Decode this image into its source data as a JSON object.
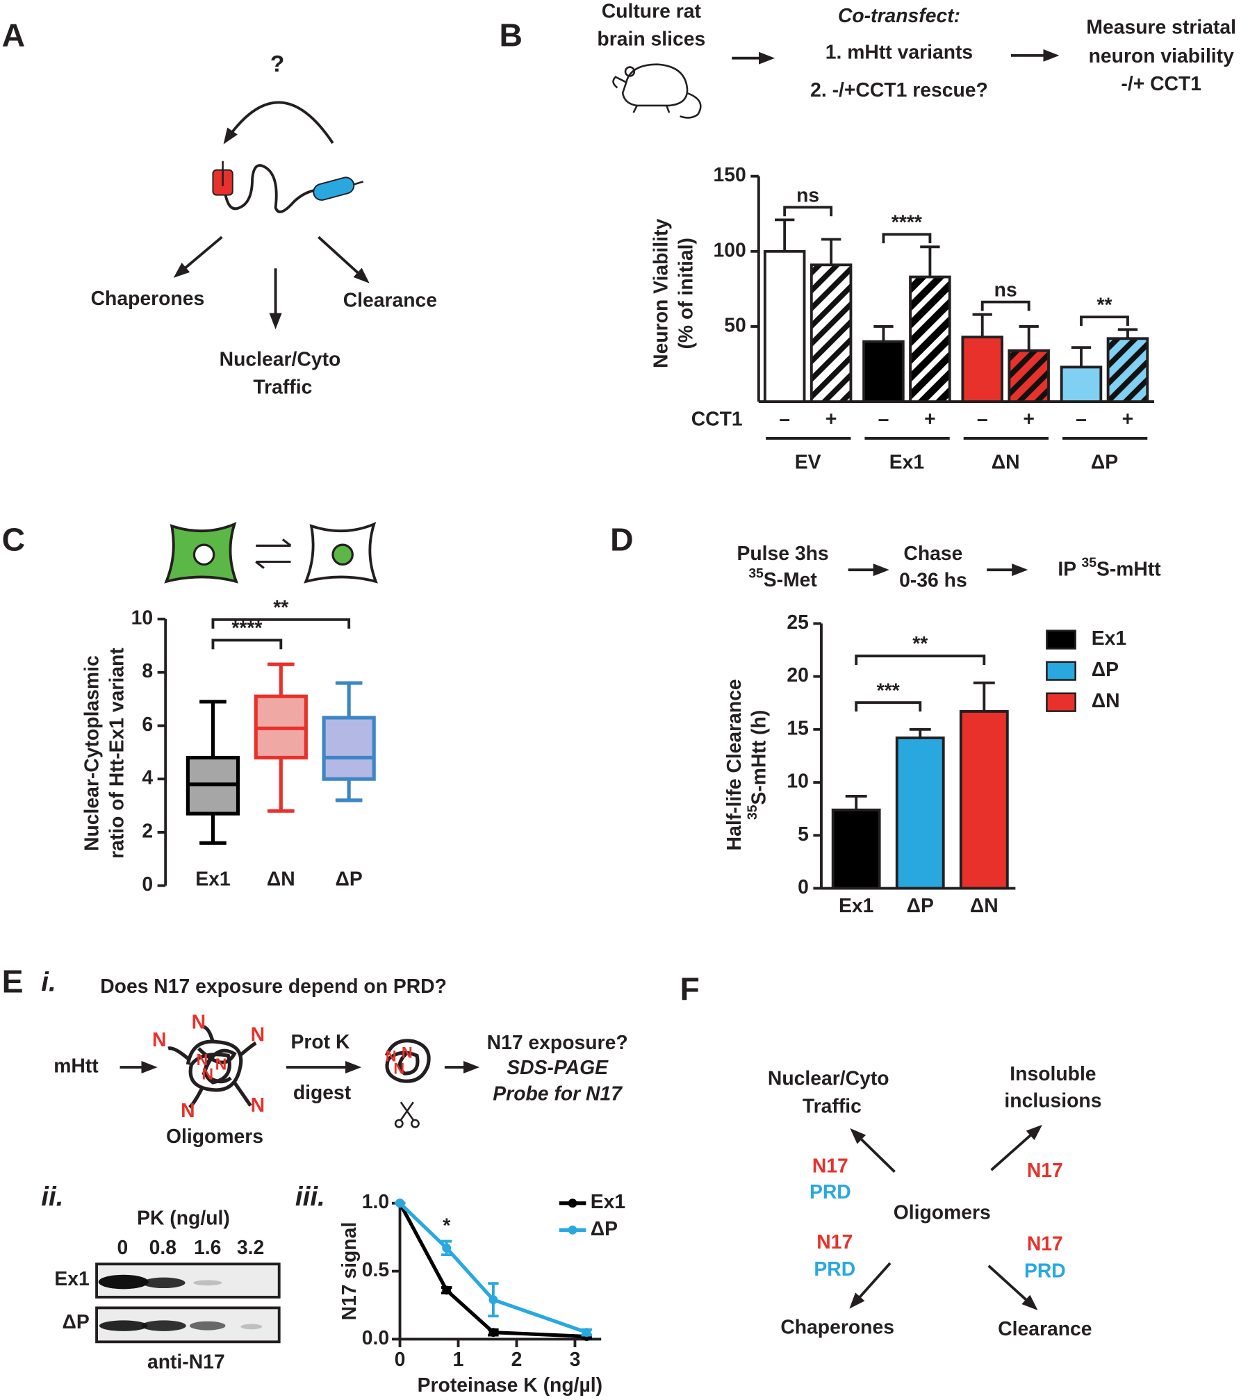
{
  "panels": {
    "a": "A",
    "b": "B",
    "c": "C",
    "d": "D",
    "e": "E",
    "f": "F",
    "e_i": "i.",
    "e_ii": "ii.",
    "e_iii": "iii."
  },
  "diagram_a": {
    "question": "?",
    "chaperones": "Chaperones",
    "clearance": "Clearance",
    "traffic": [
      "Nuclear/Cyto",
      "Traffic"
    ]
  },
  "diagram_b": {
    "step1": [
      "Culture rat",
      "brain slices"
    ],
    "step2_title": "Co-transfect:",
    "step2": [
      "1. mHtt variants",
      "2. -/+CCT1 rescue?"
    ],
    "step3": [
      "Measure striatal",
      "neuron viability",
      "-/+ CCT1"
    ]
  },
  "diagram_d": {
    "step1": [
      "Pulse 3hs",
      {
        "sup": "35",
        "text": "S-Met"
      }
    ],
    "step2": [
      "Chase",
      "0-36 hs"
    ],
    "step3": {
      "prefix": "IP ",
      "sup": "35",
      "text": "S-mHtt"
    }
  },
  "diagram_e": {
    "question": "Does N17 exposure depend on PRD?",
    "input": "mHtt",
    "n_label": "N",
    "oligomers": "Oligomers",
    "enzyme": [
      "Prot K",
      "digest"
    ],
    "readout": [
      "N17 exposure?",
      "SDS-PAGE",
      "Probe for N17"
    ],
    "blot": {
      "title": "PK (ng/ul)",
      "lanes": [
        "0",
        "0.8",
        "1.6",
        "3.2"
      ],
      "rows": [
        "Ex1",
        "ΔP"
      ],
      "antibody": "anti-N17"
    }
  },
  "diagram_f": {
    "traffic": [
      "Nuclear/Cyto",
      "Traffic"
    ],
    "inclusions": [
      "Insoluble",
      "inclusions"
    ],
    "center": "Oligomers",
    "chaperones": "Chaperones",
    "clearance": "Clearance",
    "n17": "N17",
    "prd": "PRD"
  },
  "chart_data": [
    {
      "type": "bar",
      "y_label": [
        "Neuron Viability",
        "(% of initial)"
      ],
      "row_label": "CCT1",
      "categories": [
        "–",
        "+",
        "–",
        "+",
        "–",
        "+",
        "–",
        "+"
      ],
      "groups": [
        "EV",
        "Ex1",
        "ΔN",
        "ΔP"
      ],
      "values": [
        100,
        91,
        40,
        83,
        43,
        34,
        23,
        42
      ],
      "errors": [
        21,
        17,
        10,
        20,
        15,
        16,
        13,
        6
      ],
      "colors": [
        "#ffffff",
        "#ffffff",
        "#000000",
        "#000000",
        "#e8312a",
        "#e8312a",
        "#7fd0f2",
        "#7fd0f2"
      ],
      "hatched": [
        false,
        true,
        false,
        true,
        false,
        true,
        false,
        true
      ],
      "annotations": [
        "ns",
        "****",
        "ns",
        "**"
      ],
      "ylim": [
        0,
        150
      ],
      "yticks": [
        50,
        100,
        150
      ]
    },
    {
      "type": "box",
      "y_label": [
        "Nuclear-Cytoplasmic",
        "ratio of Htt-Ex1 variant"
      ],
      "categories": [
        "Ex1",
        "ΔN",
        "ΔP"
      ],
      "min": [
        1.6,
        2.8,
        3.2
      ],
      "q1": [
        2.7,
        4.8,
        4.0
      ],
      "median": [
        3.8,
        5.9,
        4.8
      ],
      "q3": [
        4.8,
        7.1,
        6.3
      ],
      "max": [
        6.9,
        8.3,
        7.6
      ],
      "colors": [
        "#000000",
        "#e8312a",
        "#3d86c6"
      ],
      "fills": [
        "#a6a6a6",
        "#f0a8a4",
        "#b3b8e4"
      ],
      "annotations": [
        "****",
        "**"
      ],
      "ylim": [
        0,
        10
      ],
      "yticks": [
        0,
        2,
        4,
        6,
        8,
        10
      ]
    },
    {
      "type": "bar",
      "y_label": {
        "line1": "Half-life Clearance",
        "sup": "35",
        "rest": "S-mHtt (h)"
      },
      "categories": [
        "Ex1",
        "ΔP",
        "ΔN"
      ],
      "values": [
        7.4,
        14.2,
        16.7
      ],
      "errors": [
        1.3,
        0.8,
        2.7
      ],
      "colors": [
        "#000000",
        "#29a8e0",
        "#e8312a"
      ],
      "legend": "right",
      "annotations": [
        "***",
        "**"
      ],
      "ylim": [
        0,
        25
      ],
      "yticks": [
        0,
        5,
        10,
        15,
        20,
        25
      ]
    },
    {
      "type": "line",
      "x": [
        0,
        0.8,
        1.6,
        3.2
      ],
      "x_label": "Proteinase K (ng/µl)",
      "y_label": "N17 signal",
      "series": [
        {
          "name": "Ex1",
          "color": "#000000",
          "values": [
            1,
            0.36,
            0.05,
            0.02
          ],
          "errors": [
            0,
            0.02,
            0.02,
            0.01
          ]
        },
        {
          "name": "ΔP",
          "color": "#29a8e0",
          "values": [
            1,
            0.67,
            0.29,
            0.05
          ],
          "errors": [
            0,
            0.05,
            0.12,
            0.02
          ]
        }
      ],
      "annotation": "*",
      "legend": "upper right",
      "xlim": [
        0,
        3.45
      ],
      "xticks": [
        0,
        1,
        2,
        3
      ],
      "ylim": [
        0,
        1
      ],
      "yticks": [
        {
          "value": 0,
          "label": "0.0"
        },
        0.5,
        {
          "value": 1,
          "label": "1.0"
        }
      ]
    }
  ]
}
